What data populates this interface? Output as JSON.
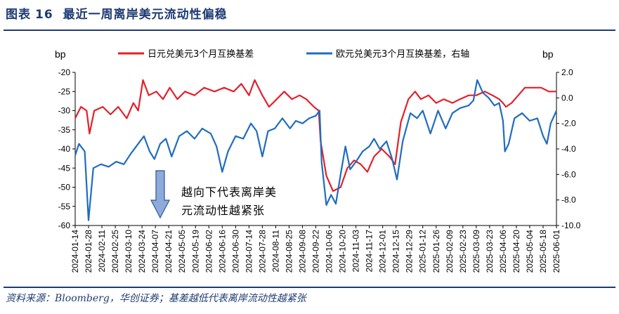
{
  "header": {
    "prefix": "图表",
    "number": "16",
    "text": "最近一周离岸美元流动性偏稳"
  },
  "footer": {
    "source": "资料来源：Bloomberg，华创证券；基差越低代表离岸流动性越紧张"
  },
  "annotation": {
    "line1": "越向下代表离岸美",
    "line2": "元流动性越紧张"
  },
  "colors": {
    "jpy": "#e3202a",
    "eur": "#1f6cc0",
    "arrow_fill": "#8eaadb",
    "arrow_stroke": "#2f5597",
    "title": "#1f3b73"
  },
  "chart_data": {
    "type": "line",
    "title": "",
    "ylabel_left": "bp",
    "ylabel_right": "bp",
    "left_axis": {
      "range": [
        -60,
        -20
      ],
      "ticks": [
        "-20",
        "-25",
        "-30",
        "-35",
        "-40",
        "-45",
        "-50",
        "-55",
        "-60"
      ]
    },
    "right_axis": {
      "range": [
        -10,
        2
      ],
      "ticks": [
        "2.0",
        "0.0",
        "-2.0",
        "-4.0",
        "-6.0",
        "-8.0",
        "-10.0"
      ]
    },
    "date_range": [
      "2024-01-14",
      "2025-06-01"
    ],
    "x_ticks": [
      "2024-01-14",
      "2024-01-28",
      "2024-02-11",
      "2024-02-25",
      "2024-03-10",
      "2024-03-24",
      "2024-04-07",
      "2024-04-21",
      "2024-05-05",
      "2024-05-19",
      "2024-06-02",
      "2024-06-16",
      "2024-06-30",
      "2024-07-14",
      "2024-07-28",
      "2024-08-11",
      "2024-08-25",
      "2024-09-08",
      "2024-09-22",
      "2024-10-06",
      "2024-10-20",
      "2024-11-03",
      "2024-11-17",
      "2024-12-01",
      "2024-12-15",
      "2024-12-29",
      "2025-01-12",
      "2025-01-26",
      "2025-02-09",
      "2025-02-23",
      "2025-03-09",
      "2025-03-23",
      "2025-04-06",
      "2025-04-20",
      "2025-05-04",
      "2025-05-18",
      "2025-06-01"
    ],
    "series": [
      {
        "name": "日元兑美元3个月互换基差",
        "axis": "left",
        "points": [
          [
            "2024-01-14",
            -32
          ],
          [
            "2024-01-20",
            -29
          ],
          [
            "2024-01-26",
            -30
          ],
          [
            "2024-01-29",
            -36
          ],
          [
            "2024-02-03",
            -30
          ],
          [
            "2024-02-12",
            -29
          ],
          [
            "2024-02-20",
            -31
          ],
          [
            "2024-02-28",
            -29
          ],
          [
            "2024-03-08",
            -32
          ],
          [
            "2024-03-15",
            -28
          ],
          [
            "2024-03-20",
            -30
          ],
          [
            "2024-03-25",
            -22
          ],
          [
            "2024-03-31",
            -26
          ],
          [
            "2024-04-08",
            -25
          ],
          [
            "2024-04-15",
            -27
          ],
          [
            "2024-04-22",
            -24
          ],
          [
            "2024-04-30",
            -27
          ],
          [
            "2024-05-08",
            -25
          ],
          [
            "2024-05-18",
            -26
          ],
          [
            "2024-05-28",
            -24
          ],
          [
            "2024-06-08",
            -25
          ],
          [
            "2024-06-18",
            -24
          ],
          [
            "2024-06-28",
            -25
          ],
          [
            "2024-07-06",
            -23
          ],
          [
            "2024-07-14",
            -26
          ],
          [
            "2024-07-20",
            -22
          ],
          [
            "2024-07-28",
            -26
          ],
          [
            "2024-08-04",
            -29
          ],
          [
            "2024-08-12",
            -27
          ],
          [
            "2024-08-20",
            -25
          ],
          [
            "2024-08-28",
            -27
          ],
          [
            "2024-09-05",
            -26
          ],
          [
            "2024-09-12",
            -27
          ],
          [
            "2024-09-20",
            -29
          ],
          [
            "2024-09-25",
            -30
          ],
          [
            "2024-09-27",
            -38
          ],
          [
            "2024-10-03",
            -47
          ],
          [
            "2024-10-10",
            -51
          ],
          [
            "2024-10-18",
            -50
          ],
          [
            "2024-10-25",
            -45
          ],
          [
            "2024-11-01",
            -43
          ],
          [
            "2024-11-08",
            -44
          ],
          [
            "2024-11-15",
            -46
          ],
          [
            "2024-11-22",
            -42
          ],
          [
            "2024-11-30",
            -40
          ],
          [
            "2024-12-08",
            -42
          ],
          [
            "2024-12-14",
            -44
          ],
          [
            "2024-12-20",
            -33
          ],
          [
            "2024-12-28",
            -27
          ],
          [
            "2025-01-04",
            -25
          ],
          [
            "2025-01-10",
            -27
          ],
          [
            "2025-01-18",
            -26
          ],
          [
            "2025-01-26",
            -28
          ],
          [
            "2025-02-03",
            -27
          ],
          [
            "2025-02-12",
            -28
          ],
          [
            "2025-02-20",
            -27
          ],
          [
            "2025-03-01",
            -26
          ],
          [
            "2025-03-09",
            -26
          ],
          [
            "2025-03-18",
            -25
          ],
          [
            "2025-03-26",
            -26
          ],
          [
            "2025-04-02",
            -27
          ],
          [
            "2025-04-06",
            -28
          ],
          [
            "2025-04-09",
            -29
          ],
          [
            "2025-04-15",
            -28
          ],
          [
            "2025-04-22",
            -26
          ],
          [
            "2025-04-29",
            -24
          ],
          [
            "2025-05-08",
            -24
          ],
          [
            "2025-05-16",
            -24
          ],
          [
            "2025-05-24",
            -25
          ],
          [
            "2025-06-01",
            -25
          ]
        ]
      },
      {
        "name": "欧元兑美元3个月互换基差，右轴",
        "axis": "right",
        "points": [
          [
            "2024-01-14",
            -4.5
          ],
          [
            "2024-01-18",
            -3.6
          ],
          [
            "2024-01-24",
            -4.2
          ],
          [
            "2024-01-28",
            -9.6
          ],
          [
            "2024-02-02",
            -5.5
          ],
          [
            "2024-02-10",
            -5.2
          ],
          [
            "2024-02-18",
            -5.4
          ],
          [
            "2024-02-26",
            -5.0
          ],
          [
            "2024-03-05",
            -5.2
          ],
          [
            "2024-03-12",
            -4.4
          ],
          [
            "2024-03-20",
            -3.6
          ],
          [
            "2024-03-26",
            -3.0
          ],
          [
            "2024-04-01",
            -4.2
          ],
          [
            "2024-04-06",
            -4.8
          ],
          [
            "2024-04-12",
            -3.6
          ],
          [
            "2024-04-18",
            -3.2
          ],
          [
            "2024-04-24",
            -4.6
          ],
          [
            "2024-05-02",
            -3.0
          ],
          [
            "2024-05-10",
            -2.6
          ],
          [
            "2024-05-18",
            -3.2
          ],
          [
            "2024-05-26",
            -2.4
          ],
          [
            "2024-06-04",
            -2.8
          ],
          [
            "2024-06-10",
            -3.8
          ],
          [
            "2024-06-16",
            -5.8
          ],
          [
            "2024-06-22",
            -4.2
          ],
          [
            "2024-06-30",
            -3.0
          ],
          [
            "2024-07-08",
            -3.2
          ],
          [
            "2024-07-16",
            -2.0
          ],
          [
            "2024-07-22",
            -2.6
          ],
          [
            "2024-07-28",
            -4.6
          ],
          [
            "2024-08-03",
            -2.6
          ],
          [
            "2024-08-10",
            -2.4
          ],
          [
            "2024-08-18",
            -1.6
          ],
          [
            "2024-08-26",
            -2.4
          ],
          [
            "2024-09-01",
            -1.8
          ],
          [
            "2024-09-08",
            -2.0
          ],
          [
            "2024-09-15",
            -1.6
          ],
          [
            "2024-09-22",
            -1.4
          ],
          [
            "2024-09-26",
            -1.0
          ],
          [
            "2024-09-28",
            -5.0
          ],
          [
            "2024-10-03",
            -8.4
          ],
          [
            "2024-10-08",
            -7.6
          ],
          [
            "2024-10-13",
            -8.3
          ],
          [
            "2024-10-18",
            -6.0
          ],
          [
            "2024-10-23",
            -3.8
          ],
          [
            "2024-10-28",
            -5.6
          ],
          [
            "2024-11-03",
            -5.0
          ],
          [
            "2024-11-10",
            -4.2
          ],
          [
            "2024-11-17",
            -3.8
          ],
          [
            "2024-11-22",
            -3.2
          ],
          [
            "2024-11-28",
            -4.0
          ],
          [
            "2024-12-05",
            -3.4
          ],
          [
            "2024-12-11",
            -4.8
          ],
          [
            "2024-12-16",
            -6.4
          ],
          [
            "2024-12-22",
            -3.4
          ],
          [
            "2024-12-30",
            -1.2
          ],
          [
            "2025-01-06",
            -1.6
          ],
          [
            "2025-01-12",
            -1.0
          ],
          [
            "2025-01-20",
            -2.8
          ],
          [
            "2025-01-28",
            -1.0
          ],
          [
            "2025-02-05",
            -2.4
          ],
          [
            "2025-02-12",
            -1.2
          ],
          [
            "2025-02-20",
            -0.8
          ],
          [
            "2025-03-01",
            -0.6
          ],
          [
            "2025-03-06",
            -0.2
          ],
          [
            "2025-03-10",
            1.4
          ],
          [
            "2025-03-16",
            0.4
          ],
          [
            "2025-03-22",
            0.0
          ],
          [
            "2025-03-28",
            -0.6
          ],
          [
            "2025-04-02",
            -0.4
          ],
          [
            "2025-04-06",
            -1.8
          ],
          [
            "2025-04-08",
            -4.2
          ],
          [
            "2025-04-12",
            -3.6
          ],
          [
            "2025-04-18",
            -1.6
          ],
          [
            "2025-04-26",
            -1.2
          ],
          [
            "2025-05-04",
            -1.8
          ],
          [
            "2025-05-12",
            -1.6
          ],
          [
            "2025-05-18",
            -3.0
          ],
          [
            "2025-05-22",
            -3.6
          ],
          [
            "2025-05-26",
            -2.0
          ],
          [
            "2025-06-01",
            -1.0
          ]
        ]
      }
    ]
  }
}
